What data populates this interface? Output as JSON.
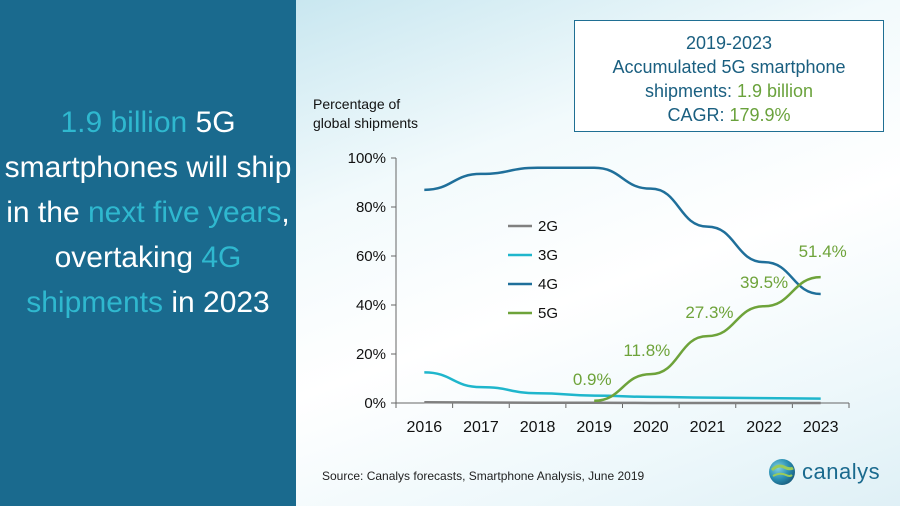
{
  "headline": [
    {
      "text": "1.9 billion",
      "highlight": true
    },
    {
      "text": " 5G smartphones will ship in the ",
      "highlight": false
    },
    {
      "text": "next five years",
      "highlight": true
    },
    {
      "text": ", overtaking ",
      "highlight": false
    },
    {
      "text": "4G shipments",
      "highlight": true
    },
    {
      "text": " in 2023",
      "highlight": false
    }
  ],
  "callout": {
    "title": "2019-2023",
    "line2": "Accumulated 5G smartphone",
    "line3_label": "shipments: ",
    "line3_value": "1.9 billion",
    "line4_label": "CAGR: ",
    "line4_value": "179.9%"
  },
  "source": "Source: Canalys forecasts, Smartphone Analysis, June 2019",
  "logo": {
    "text": "canalys"
  },
  "colors": {
    "left_panel": "#1a6a8e",
    "highlight": "#2fb8cf",
    "2G": "#808080",
    "3G": "#1fb6cc",
    "4G": "#1f6f9a",
    "5G": "#6ea33a"
  },
  "chart_data": {
    "type": "line",
    "ylabel": "Percentage of\nglobal shipments",
    "xlabel": "",
    "categories": [
      "2016",
      "2017",
      "2018",
      "2019",
      "2020",
      "2021",
      "2022",
      "2023"
    ],
    "ylim": [
      0,
      100
    ],
    "yticks": [
      "0%",
      "20%",
      "40%",
      "60%",
      "80%",
      "100%"
    ],
    "legend_position": "center-left",
    "series": [
      {
        "name": "2G",
        "values": [
          0.3,
          0.2,
          0.1,
          0.1,
          0.0,
          0.0,
          0.0,
          0.0
        ]
      },
      {
        "name": "3G",
        "values": [
          12.5,
          6.5,
          4.0,
          3.0,
          2.5,
          2.2,
          2.0,
          1.8
        ]
      },
      {
        "name": "4G",
        "values": [
          87.0,
          93.5,
          96.0,
          96.0,
          87.5,
          72.0,
          57.5,
          44.5
        ]
      },
      {
        "name": "5G",
        "values": [
          null,
          null,
          null,
          0.9,
          11.8,
          27.3,
          39.5,
          51.4
        ]
      }
    ],
    "data_labels": [
      {
        "series": "5G",
        "x": "2019",
        "text": "0.9%"
      },
      {
        "series": "5G",
        "x": "2020",
        "text": "11.8%"
      },
      {
        "series": "5G",
        "x": "2021",
        "text": "27.3%"
      },
      {
        "series": "5G",
        "x": "2022",
        "text": "39.5%"
      },
      {
        "series": "5G",
        "x": "2023",
        "text": "51.4%"
      }
    ]
  }
}
